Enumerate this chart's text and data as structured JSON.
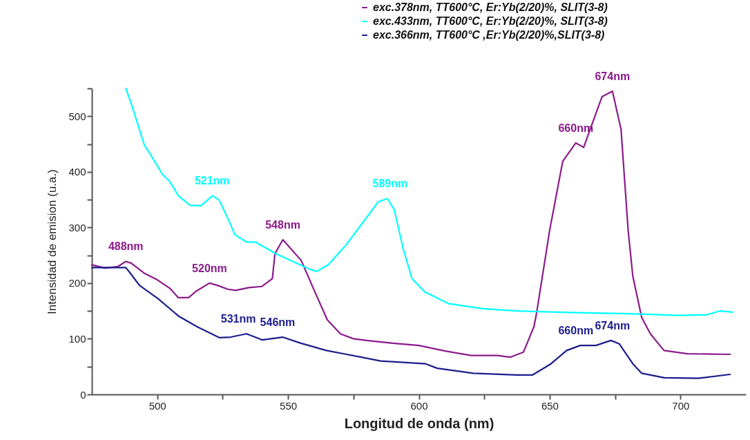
{
  "chart_data": {
    "type": "line",
    "xlabel": "Longitud de onda (nm)",
    "ylabel": "Intensidad de emision (u.a.)",
    "xlim": [
      475,
      725
    ],
    "xticks": [
      500,
      {
        "value": 525,
        "label": null
      },
      550,
      {
        "value": 575,
        "label": null
      },
      600,
      {
        "value": 625,
        "label": null
      },
      650,
      {
        "value": 675,
        "label": null
      },
      700
    ],
    "ylim": [
      0,
      550
    ],
    "yticks": [
      0,
      {
        "value": 50,
        "label": null
      },
      100,
      {
        "value": 150,
        "label": null
      },
      200,
      {
        "value": 250,
        "label": null
      },
      300,
      {
        "value": 350,
        "label": null
      },
      400,
      {
        "value": 450,
        "label": null
      },
      500,
      {
        "value": 550,
        "label": null
      }
    ],
    "grid": false,
    "legend": "top right",
    "line_style": "solid",
    "marker": "none",
    "series": [
      {
        "name": "exc.378nm, TT600°C, Er:Yb(2/20)%, SLIT(3-8)",
        "color": "#8b1a8b",
        "x": [
          475,
          480,
          485,
          488,
          490,
          495,
          500,
          505,
          508,
          512,
          515,
          520,
          523,
          527,
          530,
          535,
          540,
          544,
          545,
          548,
          555,
          560,
          565,
          570,
          575,
          580,
          590,
          600,
          610,
          620,
          630,
          635,
          640,
          644,
          645,
          650,
          655,
          660,
          663,
          670,
          674,
          677.3,
          680,
          681.8,
          685.2,
          688.5,
          693.7,
          702.6,
          719
        ],
        "values": [
          233,
          227,
          230,
          239,
          236,
          218,
          206,
          190,
          174,
          174,
          186,
          200,
          196,
          189,
          187,
          192,
          194,
          208,
          253,
          278,
          241,
          187,
          134,
          109,
          100,
          97,
          92,
          88,
          78,
          70,
          70,
          67,
          76,
          122,
          146,
          295,
          419,
          452,
          444,
          535,
          545,
          476,
          295,
          212,
          138,
          109,
          79,
          73,
          72
        ]
      },
      {
        "name": "exc.433nm, TT600°C, Er:Yb(2/20)%, SLIT(3-8)",
        "color": "#00ffff",
        "x": [
          488,
          490.1,
          495.1,
          496.9,
          502.1,
          504.7,
          508.1,
          512.5,
          516.7,
          521.1,
          523.7,
          527.1,
          529.7,
          534.1,
          537.5,
          545.3,
          558.3,
          560.9,
          565.4,
          572.4,
          581,
          584.4,
          588,
          590.6,
          594,
          597.4,
          602.3,
          611.5,
          624.5,
          637.5,
          660,
          680,
          700,
          710,
          715,
          720
        ],
        "values": [
          550,
          522,
          448,
          435,
          395,
          383,
          357,
          340,
          339,
          357,
          349,
          315,
          287,
          274,
          274,
          253,
          225,
          221,
          233,
          270,
          324,
          346,
          352,
          332,
          262,
          208,
          184,
          163,
          154,
          150,
          147,
          145,
          142,
          143,
          150,
          148
        ]
      },
      {
        "name": "exc.366nm, TT600°C ,Er:Yb(2/20)%,SLIT(3-8)",
        "color": "#1c1c8c",
        "x": [
          475,
          488,
          490,
          493.2,
          500.3,
          508.1,
          515.1,
          523.7,
          528.1,
          534.1,
          540.1,
          547.9,
          554.9,
          564.6,
          572.4,
          585.4,
          602.6,
          607,
          620.8,
          637.5,
          643.5,
          650.5,
          656.5,
          661.7,
          667.7,
          673.4,
          676.6,
          681.8,
          685.2,
          693.8,
          706.8,
          719
        ],
        "values": [
          228,
          228,
          216,
          196,
          172,
          141,
          122,
          102,
          103,
          109,
          98,
          103,
          92,
          79,
          72,
          60,
          55,
          47,
          38,
          35,
          35,
          55,
          79,
          88,
          88,
          97,
          91,
          55,
          38,
          30,
          29,
          36
        ]
      }
    ],
    "annotations": [
      {
        "text": "488nm",
        "x": 488,
        "y": 239
      },
      {
        "text": "520nm",
        "x": 520,
        "y": 200
      },
      {
        "text": "548nm",
        "x": 548,
        "y": 278
      },
      {
        "text": "660nm",
        "x": 660,
        "y": 452
      },
      {
        "text": "674nm",
        "x": 674,
        "y": 545
      },
      {
        "text": "521nm",
        "x": 521,
        "y": 357
      },
      {
        "text": "589nm",
        "x": 589,
        "y": 352
      },
      {
        "text": "531nm",
        "x": 531,
        "y": 109
      },
      {
        "text": "546nm",
        "x": 546,
        "y": 103
      },
      {
        "text": "660nm",
        "x": 660,
        "y": 88
      },
      {
        "text": "674nm",
        "x": 674,
        "y": 97
      }
    ]
  }
}
